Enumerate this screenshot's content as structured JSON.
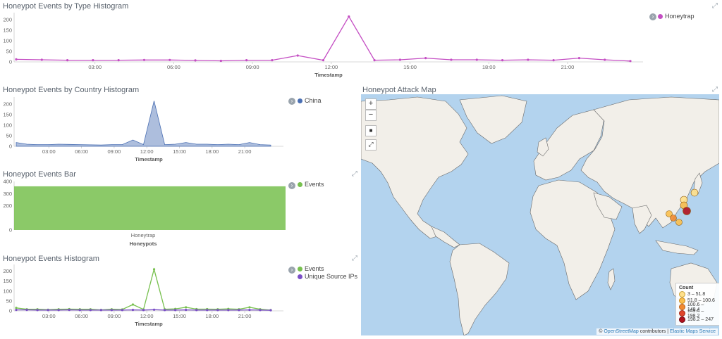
{
  "panels": {
    "type_histogram": {
      "title": "Honeypot Events by Type Histogram",
      "legend": [
        {
          "label": "Honeytrap",
          "color": "#c44ec3"
        }
      ],
      "x_title": "Timestamp",
      "x_ticks": [
        "03:00",
        "06:00",
        "09:00",
        "12:00",
        "15:00",
        "18:00",
        "21:00"
      ],
      "y_ticks": [
        "0",
        "50",
        "100",
        "150",
        "200"
      ]
    },
    "country_histogram": {
      "title": "Honeypot Events by Country Histogram",
      "legend": [
        {
          "label": "China",
          "color": "#4a6fb3"
        }
      ],
      "x_title": "Timestamp",
      "x_ticks": [
        "03:00",
        "06:00",
        "09:00",
        "12:00",
        "15:00",
        "18:00",
        "21:00"
      ],
      "y_ticks": [
        "0",
        "50",
        "100",
        "150",
        "200"
      ]
    },
    "events_bar": {
      "title": "Honeypot Events Bar",
      "legend": [
        {
          "label": "Events",
          "color": "#77c04e"
        }
      ],
      "x_title": "Honeypots",
      "category": "Honeytrap",
      "y_ticks": [
        "0",
        "200",
        "300",
        "400"
      ]
    },
    "events_histogram": {
      "title": "Honeypot Events Histogram",
      "legend": [
        {
          "label": "Events",
          "color": "#77c04e"
        },
        {
          "label": "Unique Source IPs",
          "color": "#7a4ec6"
        }
      ],
      "x_title": "Timestamp",
      "x_ticks": [
        "03:00",
        "06:00",
        "09:00",
        "12:00",
        "15:00",
        "18:00",
        "21:00"
      ],
      "y_ticks": [
        "0",
        "50",
        "100",
        "150",
        "200"
      ]
    },
    "attack_map": {
      "title": "Honeypot Attack Map",
      "controls": {
        "zoom_in": "+",
        "zoom_out": "−",
        "draw": "■",
        "fit": "⤢"
      },
      "legend_title": "Count",
      "legend_items": [
        {
          "label": "3 – 51.8",
          "color": "#ffe08a"
        },
        {
          "label": "51.8 – 100.6",
          "color": "#fbbf4c"
        },
        {
          "label": "100.6 – 149.4",
          "color": "#f28a30"
        },
        {
          "label": "149.4 – 198.2",
          "color": "#e0452c"
        },
        {
          "label": "198.2 – 247",
          "color": "#b0111e"
        }
      ],
      "attribution_prefix": "©",
      "attribution_osm": "OpenStreetMap",
      "attribution_mid": "contributors |",
      "attribution_ems": "Elastic Maps Service"
    }
  },
  "chart_data": [
    {
      "type": "line",
      "title": "Honeypot Events by Type Histogram",
      "xlabel": "Timestamp",
      "ylim": [
        0,
        220
      ],
      "x": [
        "00:30",
        "01:30",
        "02:30",
        "03:30",
        "04:30",
        "05:30",
        "06:30",
        "07:30",
        "08:30",
        "09:30",
        "10:30",
        "11:30",
        "12:00",
        "12:30",
        "13:30",
        "14:30",
        "15:30",
        "16:30",
        "17:30",
        "18:30",
        "19:30",
        "20:30",
        "21:30",
        "22:30",
        "23:30"
      ],
      "series": [
        {
          "name": "Honeytrap",
          "color": "#c44ec3",
          "values": [
            12,
            10,
            8,
            8,
            8,
            9,
            9,
            7,
            5,
            8,
            8,
            30,
            8,
            215,
            8,
            10,
            18,
            10,
            10,
            8,
            10,
            8,
            18,
            10,
            4
          ]
        }
      ]
    },
    {
      "type": "area",
      "title": "Honeypot Events by Country Histogram",
      "xlabel": "Timestamp",
      "ylim": [
        0,
        220
      ],
      "series": [
        {
          "name": "China",
          "color": "#4a6fb3",
          "values": [
            18,
            10,
            8,
            8,
            10,
            9,
            8,
            7,
            6,
            8,
            8,
            30,
            8,
            215,
            8,
            10,
            18,
            10,
            10,
            8,
            10,
            8,
            18,
            8,
            6
          ]
        }
      ]
    },
    {
      "type": "bar",
      "title": "Honeypot Events Bar",
      "xlabel": "Honeypots",
      "categories": [
        "Honeytrap"
      ],
      "ylim": [
        0,
        400
      ],
      "series": [
        {
          "name": "Events",
          "color": "#77c04e",
          "values": [
            360
          ]
        }
      ]
    },
    {
      "type": "line",
      "title": "Honeypot Events Histogram",
      "xlabel": "Timestamp",
      "ylim": [
        0,
        220
      ],
      "series": [
        {
          "name": "Events",
          "color": "#77c04e",
          "values": [
            15,
            8,
            8,
            6,
            8,
            9,
            8,
            8,
            5,
            8,
            7,
            32,
            7,
            210,
            8,
            10,
            18,
            9,
            9,
            8,
            10,
            8,
            18,
            8,
            4
          ]
        },
        {
          "name": "Unique Source IPs",
          "color": "#7a4ec6",
          "values": [
            5,
            5,
            4,
            4,
            4,
            5,
            4,
            4,
            4,
            4,
            4,
            5,
            4,
            6,
            4,
            4,
            5,
            4,
            4,
            4,
            4,
            4,
            5,
            4,
            3
          ]
        }
      ]
    }
  ]
}
